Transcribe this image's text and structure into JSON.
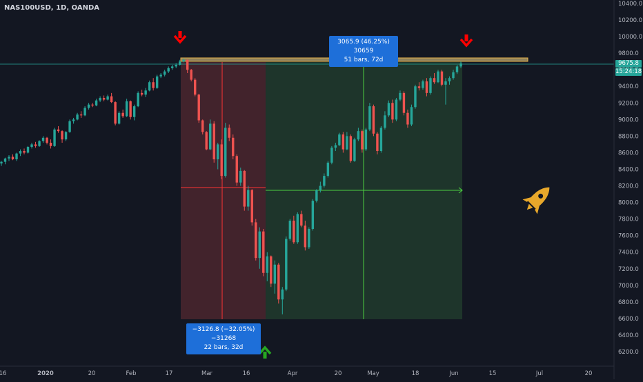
{
  "header": {
    "symbol_line": "NAS100USD, 1D, OANDA"
  },
  "price_labels": {
    "last_price": "9675.8",
    "countdown": "15:24:18",
    "last_color": "#26a69a"
  },
  "measure_up": {
    "line1": "3065.9 (46.25%) 30659",
    "line2": "51 bars, 72d"
  },
  "measure_down": {
    "line1": "−3126.8 (−32.05%) −31268",
    "line2": "22 bars, 32d"
  },
  "colors": {
    "up": "#26a69a",
    "down": "#ef5350",
    "background": "#131722",
    "rocket": "#e8a82b",
    "measure_blue": "#1e6fd9",
    "arrow_red": "#ff0000",
    "arrow_green": "#27a822"
  },
  "icons": [
    "red-down-arrow-icon",
    "red-down-arrow-icon",
    "green-up-arrow-icon",
    "rocket-icon"
  ],
  "chart_data": {
    "type": "candlestick",
    "symbol": "NAS100USD",
    "interval": "1D",
    "source": "OANDA",
    "y_ticks": [
      "10400.0",
      "10200.0",
      "10000.0",
      "9800.0",
      "9600.0",
      "9400.0",
      "9200.0",
      "9000.0",
      "8800.0",
      "8600.0",
      "8400.0",
      "8200.0",
      "8000.0",
      "7800.0",
      "7600.0",
      "7400.0",
      "7200.0",
      "7000.0",
      "6800.0",
      "6600.0",
      "6400.0",
      "6200.0"
    ],
    "x_ticks": [
      "16",
      "2020",
      "20",
      "Feb",
      "17",
      "Mar",
      "16",
      "Apr",
      "20",
      "May",
      "18",
      "Jun",
      "15",
      "Jul",
      "20"
    ],
    "ylim": [
      6020,
      10520
    ],
    "candles": [
      [
        8470,
        8500,
        8440,
        8490
      ],
      [
        8490,
        8540,
        8460,
        8530
      ],
      [
        8530,
        8570,
        8500,
        8550
      ],
      [
        8550,
        8580,
        8510,
        8520
      ],
      [
        8520,
        8600,
        8500,
        8590
      ],
      [
        8590,
        8640,
        8560,
        8620
      ],
      [
        8620,
        8650,
        8580,
        8600
      ],
      [
        8600,
        8680,
        8590,
        8670
      ],
      [
        8670,
        8720,
        8650,
        8700
      ],
      [
        8700,
        8730,
        8660,
        8680
      ],
      [
        8680,
        8750,
        8670,
        8740
      ],
      [
        8740,
        8800,
        8720,
        8780
      ],
      [
        8780,
        8790,
        8700,
        8720
      ],
      [
        8720,
        8760,
        8650,
        8680
      ],
      [
        8680,
        8900,
        8670,
        8880
      ],
      [
        8880,
        8920,
        8840,
        8860
      ],
      [
        8860,
        8870,
        8720,
        8760
      ],
      [
        8760,
        8860,
        8740,
        8850
      ],
      [
        8850,
        9000,
        8840,
        8980
      ],
      [
        8980,
        9020,
        8950,
        9000
      ],
      [
        9000,
        9080,
        8990,
        9060
      ],
      [
        9060,
        9100,
        9020,
        9050
      ],
      [
        9050,
        9160,
        9040,
        9140
      ],
      [
        9140,
        9200,
        9120,
        9180
      ],
      [
        9180,
        9200,
        9150,
        9170
      ],
      [
        9170,
        9250,
        9160,
        9230
      ],
      [
        9230,
        9280,
        9210,
        9260
      ],
      [
        9260,
        9290,
        9220,
        9240
      ],
      [
        9240,
        9300,
        9230,
        9280
      ],
      [
        9280,
        9320,
        9200,
        9210
      ],
      [
        9210,
        9220,
        8930,
        8950
      ],
      [
        8950,
        9100,
        8940,
        9080
      ],
      [
        9080,
        9120,
        9020,
        9040
      ],
      [
        9040,
        9250,
        9030,
        9220
      ],
      [
        9220,
        9230,
        9000,
        9030
      ],
      [
        9030,
        9180,
        8990,
        9160
      ],
      [
        9160,
        9340,
        9150,
        9320
      ],
      [
        9320,
        9360,
        9280,
        9300
      ],
      [
        9300,
        9380,
        9270,
        9350
      ],
      [
        9350,
        9470,
        9340,
        9450
      ],
      [
        9450,
        9500,
        9350,
        9380
      ],
      [
        9380,
        9540,
        9370,
        9520
      ],
      [
        9520,
        9560,
        9500,
        9540
      ],
      [
        9540,
        9600,
        9520,
        9580
      ],
      [
        9580,
        9640,
        9560,
        9620
      ],
      [
        9620,
        9660,
        9600,
        9640
      ],
      [
        9640,
        9680,
        9620,
        9660
      ],
      [
        9660,
        9720,
        9650,
        9700
      ],
      [
        9700,
        9736,
        9690,
        9720
      ],
      [
        9720,
        9725,
        9560,
        9600
      ],
      [
        9600,
        9610,
        9460,
        9480
      ],
      [
        9480,
        9500,
        9280,
        9300
      ],
      [
        9300,
        9310,
        8960,
        8990
      ],
      [
        8990,
        9000,
        8820,
        8850
      ],
      [
        8850,
        8860,
        8630,
        8640
      ],
      [
        8640,
        9000,
        8630,
        8950
      ],
      [
        8950,
        8980,
        8480,
        8520
      ],
      [
        8520,
        8720,
        8400,
        8700
      ],
      [
        8700,
        8760,
        8280,
        8320
      ],
      [
        8320,
        8960,
        8300,
        8900
      ],
      [
        8900,
        8940,
        8740,
        8780
      ],
      [
        8780,
        8820,
        8520,
        8560
      ],
      [
        8560,
        8580,
        8200,
        8240
      ],
      [
        8240,
        8420,
        8200,
        8380
      ],
      [
        8380,
        8390,
        7900,
        7950
      ],
      [
        7950,
        8200,
        7900,
        8150
      ],
      [
        8150,
        8160,
        7720,
        7760
      ],
      [
        7760,
        7800,
        7300,
        7330
      ],
      [
        7330,
        7700,
        7200,
        7650
      ],
      [
        7650,
        7680,
        7110,
        7150
      ],
      [
        7150,
        7400,
        7050,
        7350
      ],
      [
        7350,
        7360,
        6980,
        7020
      ],
      [
        7020,
        7300,
        6900,
        7250
      ],
      [
        7250,
        7270,
        6780,
        6830
      ],
      [
        6830,
        6980,
        6650,
        6950
      ],
      [
        6950,
        7590,
        6930,
        7560
      ],
      [
        7560,
        7800,
        7540,
        7780
      ],
      [
        7780,
        7840,
        7500,
        7520
      ],
      [
        7520,
        7880,
        7500,
        7860
      ],
      [
        7860,
        7900,
        7700,
        7720
      ],
      [
        7720,
        7780,
        7420,
        7460
      ],
      [
        7460,
        7700,
        7440,
        7680
      ],
      [
        7680,
        8040,
        7660,
        8020
      ],
      [
        8020,
        8160,
        8000,
        8150
      ],
      [
        8150,
        8250,
        8120,
        8200
      ],
      [
        8200,
        8350,
        8180,
        8320
      ],
      [
        8320,
        8500,
        8300,
        8480
      ],
      [
        8480,
        8680,
        8460,
        8660
      ],
      [
        8660,
        8720,
        8620,
        8690
      ],
      [
        8690,
        8840,
        8680,
        8820
      ],
      [
        8820,
        8850,
        8600,
        8640
      ],
      [
        8640,
        8850,
        8630,
        8800
      ],
      [
        8800,
        8820,
        8480,
        8500
      ],
      [
        8500,
        8780,
        8490,
        8760
      ],
      [
        8760,
        8900,
        8740,
        8860
      ],
      [
        8860,
        8880,
        8600,
        8640
      ],
      [
        8640,
        8900,
        8620,
        8880
      ],
      [
        8880,
        9200,
        8860,
        9160
      ],
      [
        9160,
        9180,
        8800,
        8830
      ],
      [
        8830,
        8850,
        8580,
        8620
      ],
      [
        8620,
        8920,
        8600,
        8900
      ],
      [
        8900,
        9100,
        8880,
        9050
      ],
      [
        9050,
        9230,
        9030,
        9200
      ],
      [
        9200,
        9240,
        8960,
        9000
      ],
      [
        9000,
        9260,
        8980,
        9240
      ],
      [
        9240,
        9350,
        9220,
        9320
      ],
      [
        9320,
        9340,
        9050,
        9080
      ],
      [
        9080,
        9120,
        8900,
        8940
      ],
      [
        8940,
        9180,
        8920,
        9150
      ],
      [
        9150,
        9420,
        9130,
        9400
      ],
      [
        9400,
        9450,
        9350,
        9380
      ],
      [
        9380,
        9480,
        9360,
        9460
      ],
      [
        9460,
        9500,
        9280,
        9320
      ],
      [
        9320,
        9520,
        9300,
        9500
      ],
      [
        9500,
        9560,
        9430,
        9450
      ],
      [
        9450,
        9600,
        9440,
        9580
      ],
      [
        9580,
        9600,
        9400,
        9420
      ],
      [
        9420,
        9500,
        9180,
        9460
      ],
      [
        9460,
        9520,
        9420,
        9500
      ],
      [
        9500,
        9600,
        9480,
        9570
      ],
      [
        9570,
        9660,
        9550,
        9640
      ],
      [
        9640,
        9700,
        9620,
        9676
      ]
    ],
    "horizontal_line": 9676,
    "resistance_zone": [
      9740,
      9790
    ],
    "measure_up": {
      "from": 6630,
      "to": 9696,
      "change": "3065.9 (46.25%) 30659",
      "bars": 51,
      "days": 72
    },
    "measure_down": {
      "from": 9757,
      "to": 6630,
      "change": "−3126.8 (−32.05%) −31268",
      "bars": 22,
      "days": 32
    }
  }
}
